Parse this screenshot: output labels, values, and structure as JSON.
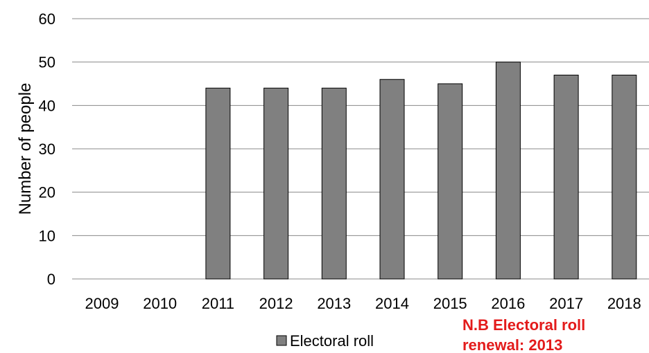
{
  "chart_data": {
    "type": "bar",
    "categories": [
      "2009",
      "2010",
      "2011",
      "2012",
      "2013",
      "2014",
      "2015",
      "2016",
      "2017",
      "2018"
    ],
    "series": [
      {
        "name": "Electoral roll",
        "values": [
          0,
          0,
          44,
          44,
          44,
          46,
          45,
          50,
          47,
          47
        ],
        "color": "#808080"
      }
    ],
    "ylabel": "Number of people",
    "xlabel": "",
    "ylim": [
      0,
      60
    ],
    "yticks": [
      "0",
      "10",
      "20",
      "30",
      "40",
      "50",
      "60"
    ],
    "grid": true,
    "legend": "bottom",
    "annotation": {
      "line1": "N.B Electoral roll",
      "line2": "renewal: 2013",
      "color": "#e31b1b"
    }
  }
}
